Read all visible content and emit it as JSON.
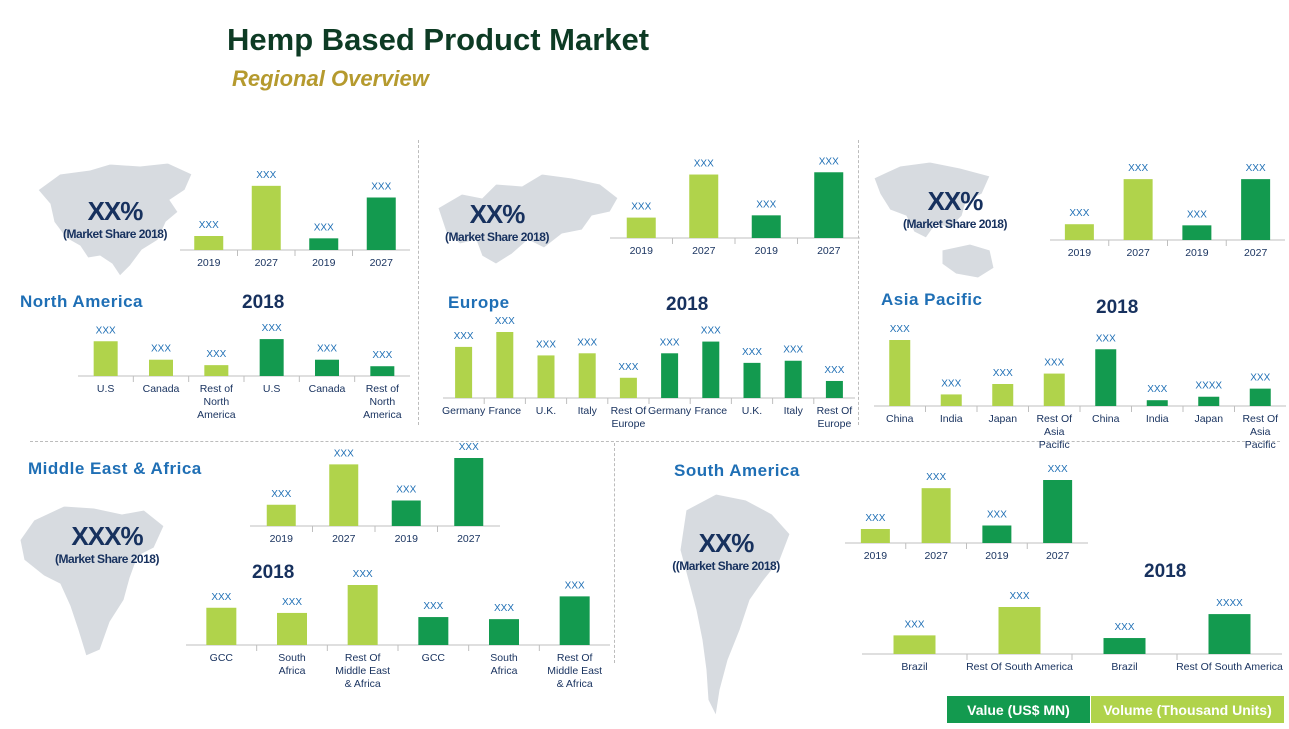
{
  "title": "Hemp Based Product Market",
  "subtitle": "Regional Overview",
  "colors": {
    "value": "#139a4f",
    "volume": "#b0d34b",
    "label": "#1f6fb5",
    "axis_text": "#17315e"
  },
  "legend": [
    {
      "label": "Value (US$ MN)",
      "color": "#139a4f"
    },
    {
      "label": "Volume (Thousand Units)",
      "color": "#b0d34b"
    }
  ],
  "regions": {
    "north_america": {
      "name": "North America",
      "share": "XX%",
      "share_note": "(Market Share 2018)",
      "year_heading": "2018"
    },
    "europe": {
      "name": "Europe",
      "share": "XX%",
      "share_note": "(Market Share 2018)",
      "year_heading": "2018"
    },
    "asia_pacific": {
      "name": "Asia Pacific",
      "share": "XX%",
      "share_note": "(Market Share 2018)",
      "year_heading": "2018"
    },
    "mea": {
      "name": "Middle East & Africa",
      "share": "XXX%",
      "share_note": "(Market Share 2018)",
      "year_heading": "2018"
    },
    "south_america": {
      "name": "South America",
      "share": "XX%",
      "share_note": "((Market Share 2018)",
      "year_heading": "2018"
    }
  },
  "chart_data": [
    {
      "id": "na-years",
      "type": "bar",
      "region": "North America",
      "categories": [
        "2019",
        "2027",
        "2019",
        "2027"
      ],
      "values": [
        12,
        55,
        10,
        45
      ],
      "kinds": [
        "volume",
        "volume",
        "value",
        "value"
      ],
      "data_labels": [
        "XXX",
        "XXX",
        "XXX",
        "XXX"
      ]
    },
    {
      "id": "na-2018",
      "type": "bar",
      "region": "North America",
      "categories": [
        "U.S",
        "Canada",
        "Rest of North America",
        "U.S",
        "Canada",
        "Rest of North America"
      ],
      "values": [
        32,
        15,
        10,
        34,
        15,
        9
      ],
      "kinds": [
        "volume",
        "volume",
        "volume",
        "value",
        "value",
        "value"
      ],
      "data_labels": [
        "XXX",
        "XXX",
        "XXX",
        "XXX",
        "XXX",
        "XXX"
      ]
    },
    {
      "id": "eu-years",
      "type": "bar",
      "region": "Europe",
      "categories": [
        "2019",
        "2027",
        "2019",
        "2027"
      ],
      "values": [
        18,
        56,
        20,
        58
      ],
      "kinds": [
        "volume",
        "volume",
        "value",
        "value"
      ],
      "data_labels": [
        "XXX",
        "XXX",
        "XXX",
        "XXX"
      ]
    },
    {
      "id": "eu-2018",
      "type": "bar",
      "region": "Europe",
      "categories": [
        "Germany",
        "France",
        "U.K.",
        "Italy",
        "Rest Of Europe",
        "Germany",
        "France",
        "U.K.",
        "Italy",
        "Rest Of Europe"
      ],
      "values": [
        48,
        62,
        40,
        42,
        19,
        42,
        53,
        33,
        35,
        16
      ],
      "kinds": [
        "volume",
        "volume",
        "volume",
        "volume",
        "volume",
        "value",
        "value",
        "value",
        "value",
        "value"
      ],
      "data_labels": [
        "XXX",
        "XXX",
        "XXX",
        "XXX",
        "XXX",
        "XXX",
        "XXX",
        "XXX",
        "XXX",
        "XXX"
      ]
    },
    {
      "id": "ap-years",
      "type": "bar",
      "region": "Asia Pacific",
      "categories": [
        "2019",
        "2027",
        "2019",
        "2027"
      ],
      "values": [
        14,
        54,
        13,
        54
      ],
      "kinds": [
        "volume",
        "volume",
        "value",
        "value"
      ],
      "data_labels": [
        "XXX",
        "XXX",
        "XXX",
        "XXX"
      ]
    },
    {
      "id": "ap-2018",
      "type": "bar",
      "region": "Asia Pacific",
      "categories": [
        "China",
        "India",
        "Japan",
        "Rest Of Asia Pacific",
        "China",
        "India",
        "Japan",
        "Rest Of Asia Pacific"
      ],
      "values": [
        57,
        10,
        19,
        28,
        49,
        5,
        8,
        15
      ],
      "kinds": [
        "volume",
        "volume",
        "volume",
        "volume",
        "value",
        "value",
        "value",
        "value"
      ],
      "data_labels": [
        "XXX",
        "XXX",
        "XXX",
        "XXX",
        "XXX",
        "XXX",
        "XXXX",
        "XXX"
      ]
    },
    {
      "id": "mea-years",
      "type": "bar",
      "region": "Middle East & Africa",
      "categories": [
        "2019",
        "2027",
        "2019",
        "2027"
      ],
      "values": [
        20,
        58,
        24,
        64
      ],
      "kinds": [
        "volume",
        "volume",
        "value",
        "value"
      ],
      "data_labels": [
        "XXX",
        "XXX",
        "XXX",
        "XXX"
      ]
    },
    {
      "id": "mea-2018",
      "type": "bar",
      "region": "Middle East & Africa",
      "categories": [
        "GCC",
        "South Africa",
        "Rest Of Middle East & Africa",
        "GCC",
        "South Africa",
        "Rest Of Middle East & Africa"
      ],
      "values": [
        36,
        31,
        58,
        27,
        25,
        47
      ],
      "kinds": [
        "volume",
        "volume",
        "volume",
        "value",
        "value",
        "value"
      ],
      "data_labels": [
        "XXX",
        "XXX",
        "XXX",
        "XXX",
        "XXX",
        "XXX"
      ]
    },
    {
      "id": "sa-years",
      "type": "bar",
      "region": "South America",
      "categories": [
        "2019",
        "2027",
        "2019",
        "2027"
      ],
      "values": [
        12,
        47,
        15,
        54
      ],
      "kinds": [
        "volume",
        "volume",
        "value",
        "value"
      ],
      "data_labels": [
        "XXX",
        "XXX",
        "XXX",
        "XXX"
      ]
    },
    {
      "id": "sa-2018",
      "type": "bar",
      "region": "South America",
      "categories": [
        "Brazil",
        "Rest Of South America",
        "Brazil",
        "Rest Of South America"
      ],
      "values": [
        21,
        53,
        18,
        45
      ],
      "kinds": [
        "volume",
        "volume",
        "value",
        "value"
      ],
      "data_labels": [
        "XXX",
        "XXX",
        "XXX",
        "XXXX"
      ]
    }
  ]
}
